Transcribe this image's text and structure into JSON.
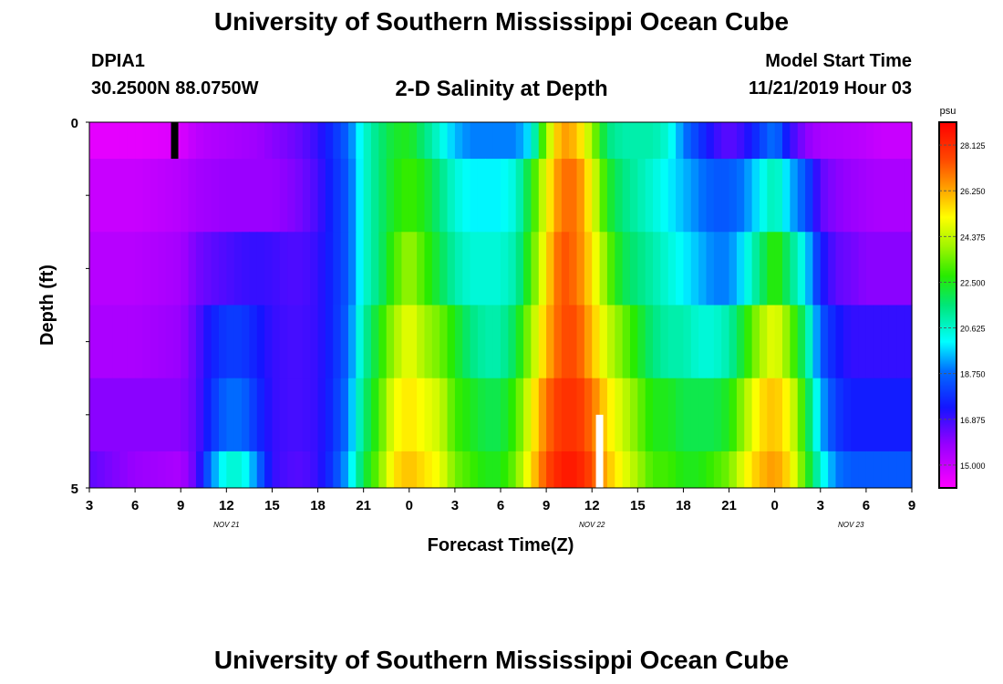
{
  "header": {
    "title": "University of Southern Mississippi Ocean Cube",
    "station": "DPIA1",
    "coordinates": "30.2500N 88.0750W",
    "plot_title": "2-D Salinity at Depth",
    "start_label": "Model Start Time",
    "start_value": "11/21/2019 Hour 03"
  },
  "footer": {
    "title": "University of Southern Mississippi Ocean Cube"
  },
  "chart_data": {
    "type": "heatmap",
    "title": "2-D Salinity at Depth",
    "xlabel": "Forecast Time(Z)",
    "ylabel": "Depth (ft)",
    "x_start_hour": 3,
    "x_end_hour": 57,
    "x_tick_labels": [
      "3",
      "6",
      "9",
      "12",
      "15",
      "18",
      "21",
      "0",
      "3",
      "6",
      "9",
      "12",
      "15",
      "18",
      "21",
      "0",
      "3",
      "6",
      "9"
    ],
    "date_labels": [
      {
        "text": "NOV  21",
        "hour": 12
      },
      {
        "text": "NOV  22",
        "hour": 36
      },
      {
        "text": "NOV  23",
        "hour": 53
      }
    ],
    "ylim": [
      0,
      5
    ],
    "y_tick_labels": [
      "0",
      "5"
    ],
    "depth_bands": [
      [
        0,
        0.5
      ],
      [
        0.5,
        1.5
      ],
      [
        1.5,
        2.5
      ],
      [
        2.5,
        3.5
      ],
      [
        3.5,
        4.5
      ],
      [
        4.5,
        5
      ]
    ],
    "colorbar": {
      "unit": "psu",
      "min": 14.0625,
      "max": 29.0625,
      "ticks": [
        "15.000",
        "16.875",
        "18.750",
        "20.625",
        "22.500",
        "24.375",
        "26.250",
        "28.125"
      ]
    },
    "markers": [
      {
        "hour": 8.6,
        "depth": [
          0,
          0.5
        ],
        "color": "#000000"
      },
      {
        "hour": 36.5,
        "depth": [
          4.0,
          5.0
        ],
        "color": "#ffffff"
      }
    ],
    "x_hours": [
      3,
      6,
      9,
      10,
      11,
      12,
      13,
      14,
      15,
      16,
      17,
      18,
      19,
      20,
      21,
      22,
      23,
      24,
      25,
      26,
      27,
      28,
      29,
      30,
      31,
      32,
      33,
      34,
      35,
      36,
      37,
      38,
      39,
      40,
      41,
      42,
      43,
      44,
      45,
      46,
      47,
      48,
      49,
      50,
      51,
      52,
      53,
      54,
      55,
      56,
      57
    ],
    "values": [
      [
        14.5,
        14.5,
        14.7,
        15.2,
        15.4,
        15.5,
        15.6,
        15.7,
        16.0,
        16.2,
        16.5,
        17.0,
        17.8,
        18.7,
        20.5,
        21.5,
        22.3,
        22.5,
        21.5,
        20.5,
        19.5,
        19.0,
        19.0,
        19.0,
        19.0,
        20.0,
        24.0,
        26.5,
        26.0,
        24.0,
        21.5,
        21.0,
        21.0,
        21.0,
        20.5,
        19.0,
        18.0,
        17.0,
        16.5,
        17.0,
        18.0,
        19.0,
        17.0,
        16.0,
        15.5,
        15.4,
        15.3,
        15.2,
        15.0,
        15.0,
        15.0
      ],
      [
        15.0,
        15.0,
        15.3,
        15.6,
        15.7,
        15.8,
        15.8,
        15.8,
        15.8,
        16.0,
        16.3,
        16.8,
        17.7,
        18.5,
        20.5,
        21.5,
        22.5,
        23.0,
        22.5,
        21.5,
        20.5,
        20.0,
        20.0,
        20.0,
        20.5,
        22.5,
        25.0,
        27.0,
        27.0,
        25.0,
        22.5,
        21.5,
        21.0,
        20.5,
        20.0,
        19.5,
        19.0,
        18.5,
        18.5,
        19.0,
        20.0,
        21.0,
        19.5,
        18.5,
        16.5,
        16.0,
        15.8,
        15.6,
        15.5,
        15.5,
        15.5
      ],
      [
        15.3,
        15.3,
        15.6,
        16.2,
        16.5,
        16.7,
        16.9,
        17.0,
        16.9,
        16.7,
        16.7,
        17.0,
        17.7,
        18.5,
        20.5,
        21.5,
        23.0,
        24.0,
        23.0,
        22.0,
        21.0,
        20.5,
        20.5,
        20.5,
        21.0,
        23.0,
        25.5,
        27.5,
        27.0,
        25.5,
        23.5,
        22.0,
        21.5,
        21.0,
        20.5,
        20.0,
        19.5,
        19.0,
        19.0,
        20.0,
        21.5,
        23.0,
        21.5,
        20.0,
        17.5,
        16.5,
        16.3,
        16.0,
        16.0,
        16.0,
        16.0
      ],
      [
        15.5,
        15.5,
        15.8,
        16.5,
        17.5,
        18.0,
        18.0,
        17.5,
        17.0,
        16.8,
        16.8,
        17.0,
        17.7,
        18.7,
        21.0,
        22.5,
        24.0,
        25.0,
        24.0,
        23.5,
        22.5,
        21.5,
        21.0,
        21.0,
        22.0,
        24.0,
        26.0,
        27.5,
        27.5,
        26.0,
        24.5,
        23.5,
        22.5,
        21.5,
        21.0,
        21.0,
        20.5,
        20.5,
        21.0,
        22.5,
        24.0,
        25.0,
        23.5,
        21.5,
        18.5,
        17.5,
        17.0,
        17.0,
        17.0,
        17.0,
        17.0
      ],
      [
        16.0,
        16.0,
        16.0,
        16.5,
        17.8,
        18.8,
        18.8,
        17.8,
        17.0,
        16.8,
        16.8,
        17.0,
        17.8,
        19.0,
        21.5,
        23.0,
        25.0,
        25.5,
        25.0,
        24.5,
        23.0,
        22.5,
        22.0,
        22.0,
        23.0,
        25.0,
        27.0,
        28.0,
        28.0,
        27.0,
        25.5,
        24.5,
        23.5,
        22.5,
        22.5,
        22.0,
        22.0,
        22.0,
        22.5,
        24.0,
        25.5,
        26.0,
        25.0,
        22.5,
        19.5,
        18.0,
        17.5,
        17.5,
        17.5,
        17.5,
        17.5
      ],
      [
        16.5,
        15.8,
        15.5,
        16.5,
        19.0,
        20.5,
        20.5,
        19.0,
        17.0,
        16.7,
        16.6,
        17.0,
        18.0,
        19.5,
        22.0,
        23.5,
        25.5,
        26.0,
        25.5,
        25.0,
        23.5,
        23.0,
        22.5,
        22.5,
        23.5,
        25.5,
        27.5,
        28.5,
        28.5,
        27.5,
        26.0,
        25.0,
        24.0,
        23.0,
        23.0,
        22.5,
        22.5,
        23.0,
        23.5,
        25.0,
        26.0,
        26.5,
        25.5,
        23.0,
        20.5,
        19.0,
        18.5,
        18.5,
        18.5,
        18.5,
        18.5
      ]
    ]
  }
}
